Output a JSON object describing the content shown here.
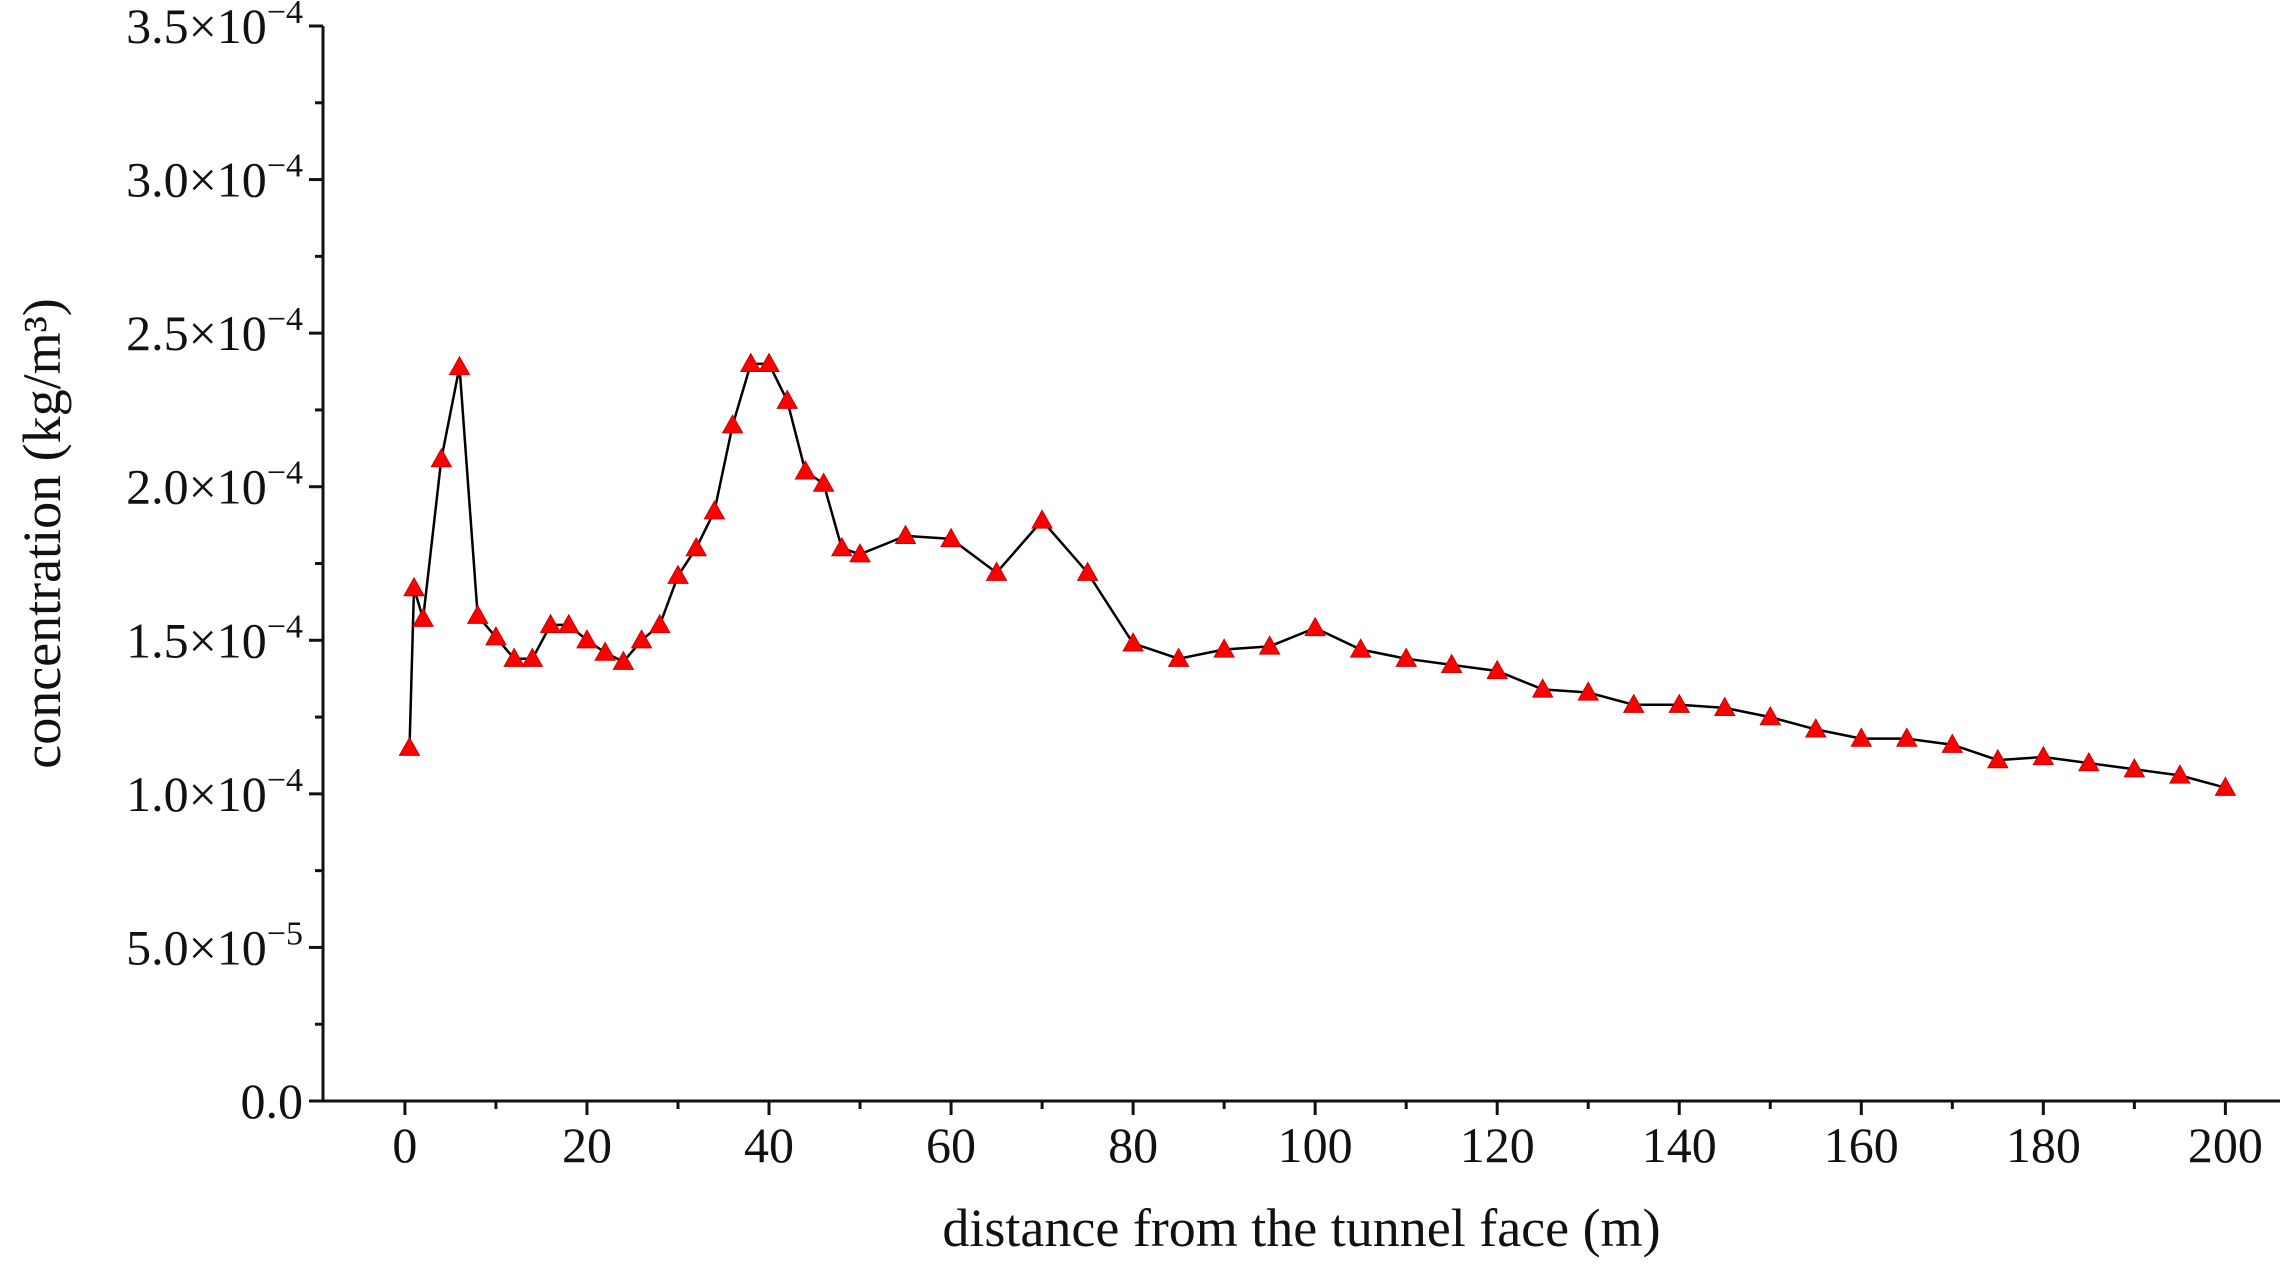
{
  "chart_data": {
    "type": "line",
    "title": "",
    "xlabel": "distance from the tunnel face (m)",
    "ylabel": "concentration (kg/m³)",
    "xlim": [
      -9,
      206
    ],
    "ylim": [
      0,
      0.00035
    ],
    "x_ticks": [
      0,
      20,
      40,
      60,
      80,
      100,
      120,
      140,
      160,
      180,
      200
    ],
    "x_tick_labels": [
      "0",
      "20",
      "40",
      "60",
      "80",
      "100",
      "120",
      "140",
      "160",
      "180",
      "200"
    ],
    "y_ticks": [
      0,
      5e-05,
      0.0001,
      0.00015,
      0.0002,
      0.00025,
      0.0003,
      0.00035
    ],
    "y_tick_labels": [
      {
        "mantissa": "0.0",
        "exponent": ""
      },
      {
        "mantissa": "5.0",
        "exponent": "-5"
      },
      {
        "mantissa": "1.0",
        "exponent": "-4"
      },
      {
        "mantissa": "1.5",
        "exponent": "-4"
      },
      {
        "mantissa": "2.0",
        "exponent": "-4"
      },
      {
        "mantissa": "2.5",
        "exponent": "-4"
      },
      {
        "mantissa": "3.0",
        "exponent": "-4"
      },
      {
        "mantissa": "3.5",
        "exponent": "-4"
      }
    ],
    "grid": false,
    "legend": "none",
    "line_color": "#000000",
    "marker": "triangle",
    "marker_color": "#ff0000",
    "series": [
      {
        "x": [
          0.5,
          1,
          2,
          4,
          6,
          8,
          10,
          12,
          14,
          16,
          18,
          20,
          22,
          24,
          26,
          28,
          30,
          32,
          34,
          36,
          38,
          40,
          42,
          44,
          46,
          48,
          50,
          55,
          60,
          65,
          70,
          75,
          80,
          85,
          90,
          95,
          100,
          105,
          110,
          115,
          120,
          125,
          130,
          135,
          140,
          145,
          150,
          155,
          160,
          165,
          170,
          175,
          180,
          185,
          190,
          195,
          200
        ],
        "y": [
          0.000115,
          0.000167,
          0.000157,
          0.000209,
          0.000239,
          0.000158,
          0.000151,
          0.000144,
          0.000144,
          0.000155,
          0.000155,
          0.00015,
          0.000146,
          0.000143,
          0.00015,
          0.000155,
          0.000171,
          0.00018,
          0.000192,
          0.00022,
          0.00024,
          0.00024,
          0.000228,
          0.000205,
          0.000201,
          0.00018,
          0.000178,
          0.000184,
          0.000183,
          0.000172,
          0.000189,
          0.000172,
          0.000149,
          0.000144,
          0.000147,
          0.000148,
          0.000154,
          0.000147,
          0.000144,
          0.000142,
          0.00014,
          0.000134,
          0.000133,
          0.000129,
          0.000129,
          0.000128,
          0.000125,
          0.000121,
          0.000118,
          0.000118,
          0.000116,
          0.000111,
          0.000112,
          0.00011,
          0.000108,
          0.000106,
          0.000102
        ]
      }
    ]
  }
}
